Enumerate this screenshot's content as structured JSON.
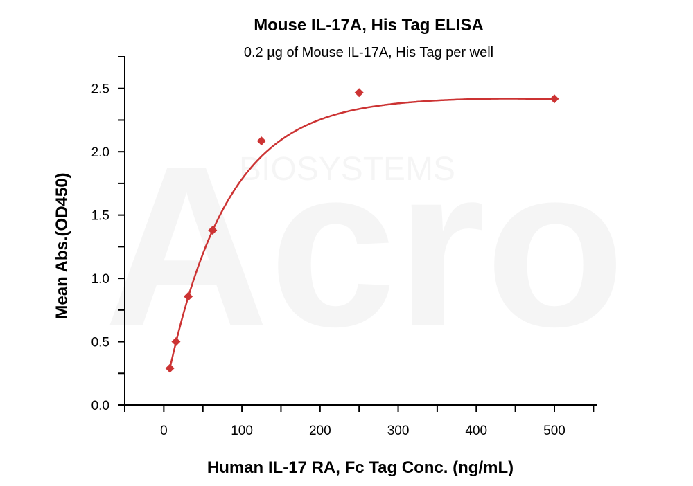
{
  "chart_data": {
    "type": "scatter",
    "title": "Mouse IL-17A, His Tag ELISA",
    "subtitle": "0.2 µg of Mouse IL-17A, His Tag per well",
    "xlabel": "Human IL-17 RA, Fc Tag Conc. (ng/mL)",
    "ylabel": "Mean Abs.(OD450)",
    "xlim": [
      -50,
      555
    ],
    "ylim": [
      0,
      2.75
    ],
    "xticks": [
      0,
      100,
      200,
      300,
      400,
      500
    ],
    "xtick_labels": [
      "0",
      "100",
      "200",
      "300",
      "400",
      "500"
    ],
    "yticks": [
      0,
      0.5,
      1.0,
      1.5,
      2.0,
      2.5
    ],
    "ytick_labels": [
      "0.0",
      "0.5",
      "1.0",
      "1.5",
      "2.0",
      "2.5"
    ],
    "grid": false,
    "series": [
      {
        "x": [
          7.8,
          15.6,
          31.25,
          62.5,
          125,
          250,
          500
        ],
        "y": [
          0.29,
          0.5,
          0.857,
          1.38,
          2.085,
          2.467,
          2.418
        ],
        "marker": "diamond",
        "fit_line": true,
        "color": "#cc3333"
      }
    ],
    "watermark": "Acro BIOSYSTEMS"
  }
}
